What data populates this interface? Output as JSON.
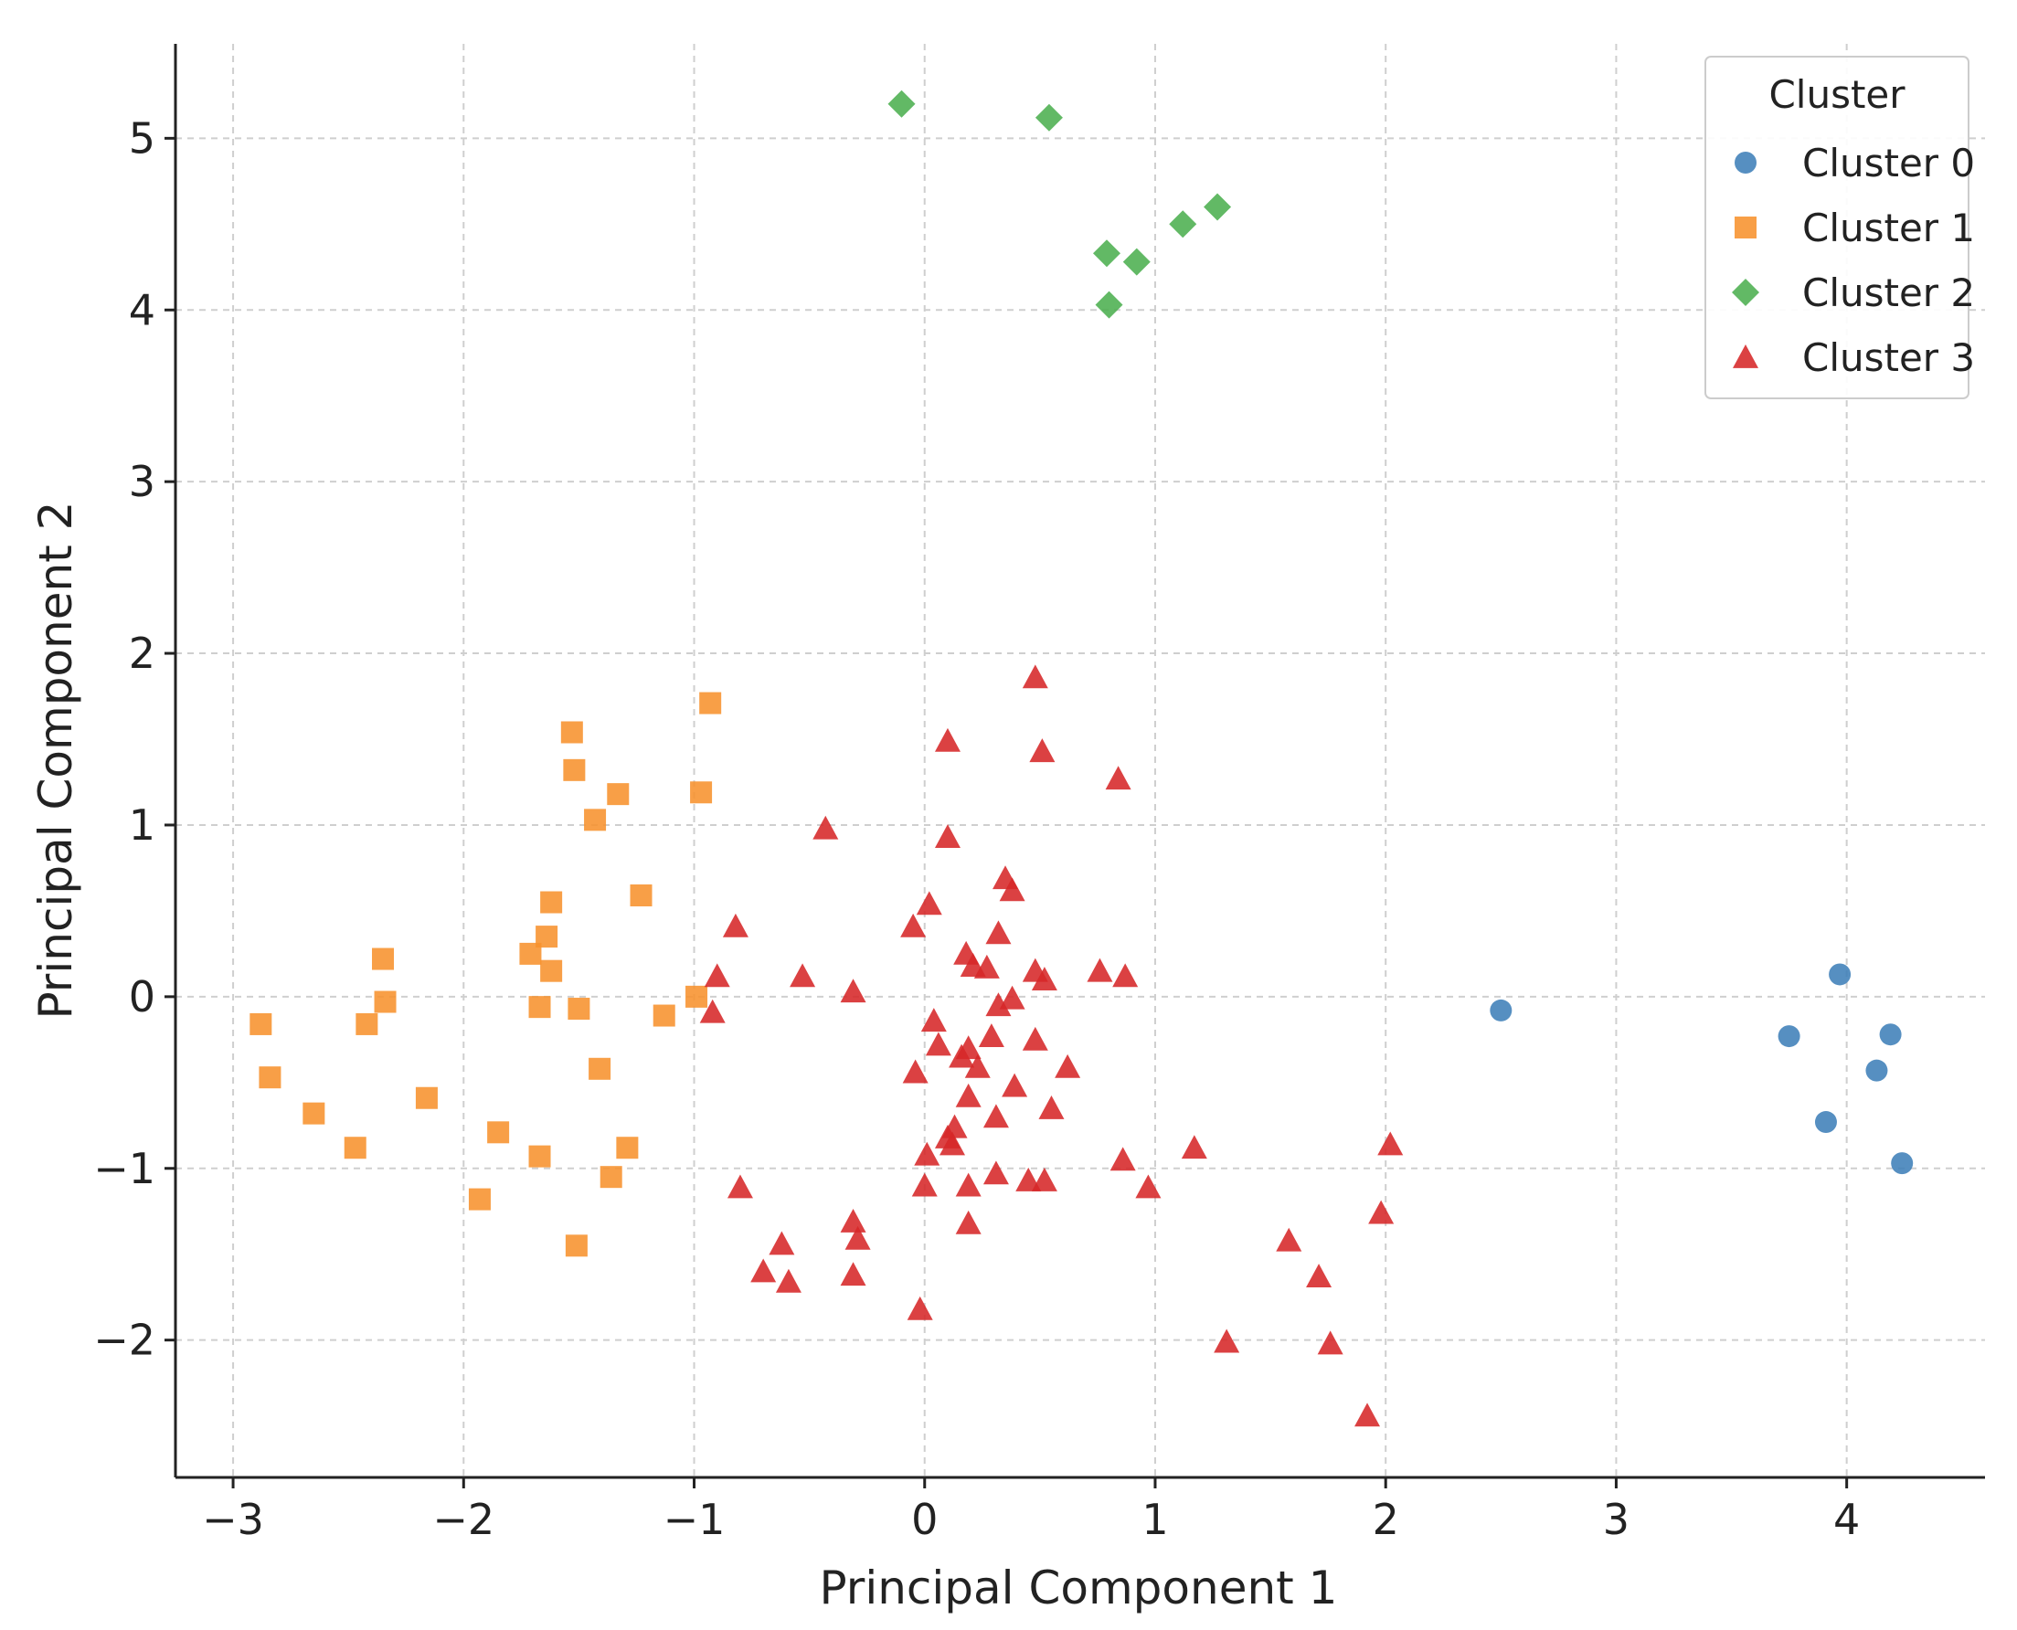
{
  "chart_data": {
    "type": "scatter",
    "title": "",
    "xlabel": "Principal Component 1",
    "ylabel": "Principal Component 2",
    "xlim": [
      -3.25,
      4.6
    ],
    "ylim": [
      -2.8,
      5.55
    ],
    "grid": true,
    "x_ticks": [
      -3,
      -2,
      -1,
      0,
      1,
      2,
      3,
      4
    ],
    "y_ticks": [
      -2,
      -1,
      0,
      1,
      2,
      3,
      4,
      5
    ],
    "legend": {
      "title": "Cluster",
      "position": "top-right"
    },
    "series": [
      {
        "name": "Cluster 0",
        "marker": "circle",
        "color": "#3f7fb8",
        "points": [
          [
            2.5,
            -0.08
          ],
          [
            3.97,
            0.13
          ],
          [
            3.75,
            -0.23
          ],
          [
            4.19,
            -0.22
          ],
          [
            4.13,
            -0.43
          ],
          [
            3.91,
            -0.73
          ],
          [
            4.24,
            -0.97
          ]
        ]
      },
      {
        "name": "Cluster 1",
        "marker": "square",
        "color": "#f7922e",
        "points": [
          [
            -0.93,
            1.71
          ],
          [
            -1.53,
            1.54
          ],
          [
            -1.52,
            1.32
          ],
          [
            -1.33,
            1.18
          ],
          [
            -0.97,
            1.19
          ],
          [
            -1.43,
            1.03
          ],
          [
            -1.23,
            0.59
          ],
          [
            -1.62,
            0.55
          ],
          [
            -1.64,
            0.35
          ],
          [
            -1.71,
            0.25
          ],
          [
            -2.35,
            0.22
          ],
          [
            -1.62,
            0.15
          ],
          [
            -2.34,
            -0.03
          ],
          [
            -0.99,
            0.0
          ],
          [
            -1.67,
            -0.06
          ],
          [
            -1.5,
            -0.07
          ],
          [
            -2.88,
            -0.16
          ],
          [
            -2.42,
            -0.16
          ],
          [
            -1.13,
            -0.11
          ],
          [
            -1.41,
            -0.42
          ],
          [
            -2.84,
            -0.47
          ],
          [
            -2.16,
            -0.59
          ],
          [
            -2.65,
            -0.68
          ],
          [
            -1.85,
            -0.79
          ],
          [
            -2.47,
            -0.88
          ],
          [
            -1.29,
            -0.88
          ],
          [
            -1.67,
            -0.93
          ],
          [
            -1.36,
            -1.05
          ],
          [
            -1.93,
            -1.18
          ],
          [
            -1.51,
            -1.45
          ]
        ]
      },
      {
        "name": "Cluster 2",
        "marker": "diamond",
        "color": "#4caf50",
        "points": [
          [
            -0.1,
            5.2
          ],
          [
            0.54,
            5.12
          ],
          [
            1.27,
            4.6
          ],
          [
            1.12,
            4.5
          ],
          [
            0.79,
            4.33
          ],
          [
            0.92,
            4.28
          ],
          [
            0.8,
            4.03
          ]
        ]
      },
      {
        "name": "Cluster 3",
        "marker": "triangle",
        "color": "#d62728",
        "points": [
          [
            0.48,
            1.86
          ],
          [
            0.1,
            1.49
          ],
          [
            0.51,
            1.43
          ],
          [
            0.84,
            1.27
          ],
          [
            -0.43,
            0.98
          ],
          [
            0.1,
            0.93
          ],
          [
            0.35,
            0.69
          ],
          [
            0.38,
            0.62
          ],
          [
            0.02,
            0.54
          ],
          [
            -0.82,
            0.41
          ],
          [
            -0.05,
            0.41
          ],
          [
            0.32,
            0.37
          ],
          [
            0.18,
            0.25
          ],
          [
            0.21,
            0.18
          ],
          [
            0.27,
            0.17
          ],
          [
            0.48,
            0.15
          ],
          [
            0.52,
            0.1
          ],
          [
            0.76,
            0.15
          ],
          [
            0.87,
            0.12
          ],
          [
            -0.9,
            0.12
          ],
          [
            -0.53,
            0.12
          ],
          [
            -0.31,
            0.03
          ],
          [
            0.38,
            -0.01
          ],
          [
            0.32,
            -0.05
          ],
          [
            -0.92,
            -0.09
          ],
          [
            0.04,
            -0.14
          ],
          [
            0.29,
            -0.23
          ],
          [
            0.48,
            -0.25
          ],
          [
            0.06,
            -0.28
          ],
          [
            0.19,
            -0.3
          ],
          [
            0.16,
            -0.35
          ],
          [
            0.23,
            -0.41
          ],
          [
            0.62,
            -0.41
          ],
          [
            -0.04,
            -0.44
          ],
          [
            0.39,
            -0.52
          ],
          [
            0.19,
            -0.58
          ],
          [
            0.55,
            -0.65
          ],
          [
            0.31,
            -0.7
          ],
          [
            0.13,
            -0.76
          ],
          [
            0.1,
            -0.82
          ],
          [
            0.12,
            -0.86
          ],
          [
            0.01,
            -0.92
          ],
          [
            1.17,
            -0.88
          ],
          [
            2.02,
            -0.86
          ],
          [
            0.86,
            -0.95
          ],
          [
            0.31,
            -1.03
          ],
          [
            0.45,
            -1.07
          ],
          [
            0.52,
            -1.07
          ],
          [
            -0.8,
            -1.11
          ],
          [
            0.0,
            -1.1
          ],
          [
            0.19,
            -1.1
          ],
          [
            0.97,
            -1.11
          ],
          [
            1.98,
            -1.26
          ],
          [
            -0.31,
            -1.31
          ],
          [
            0.19,
            -1.32
          ],
          [
            -0.29,
            -1.41
          ],
          [
            1.58,
            -1.42
          ],
          [
            -0.62,
            -1.44
          ],
          [
            -0.7,
            -1.6
          ],
          [
            -0.59,
            -1.66
          ],
          [
            -0.31,
            -1.62
          ],
          [
            1.71,
            -1.63
          ],
          [
            -0.02,
            -1.82
          ],
          [
            1.31,
            -2.01
          ],
          [
            1.76,
            -2.02
          ],
          [
            1.92,
            -2.44
          ]
        ]
      }
    ]
  }
}
